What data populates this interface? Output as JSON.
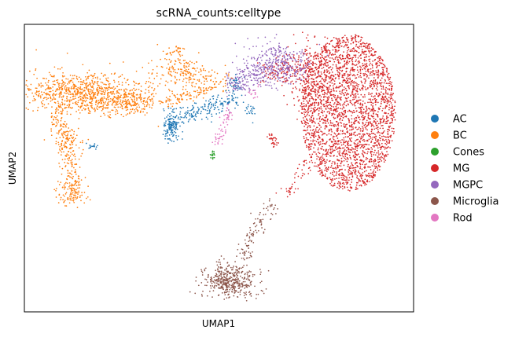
{
  "chart_data": {
    "type": "scatter",
    "title": "scRNA_counts:celltype",
    "xlabel": "UMAP1",
    "ylabel": "UMAP2",
    "xlim": [
      0,
      100
    ],
    "ylim": [
      0,
      100
    ],
    "grid": false,
    "ticks": false,
    "legend_position": "right",
    "series": [
      {
        "name": "AC",
        "color": "#1f77b4"
      },
      {
        "name": "BC",
        "color": "#ff7f0e"
      },
      {
        "name": "Cones",
        "color": "#2ca02c"
      },
      {
        "name": "MG",
        "color": "#d62728"
      },
      {
        "name": "MGPC",
        "color": "#9467bd"
      },
      {
        "name": "Microglia",
        "color": "#8c564b"
      },
      {
        "name": "Rod",
        "color": "#e377c2"
      }
    ]
  }
}
